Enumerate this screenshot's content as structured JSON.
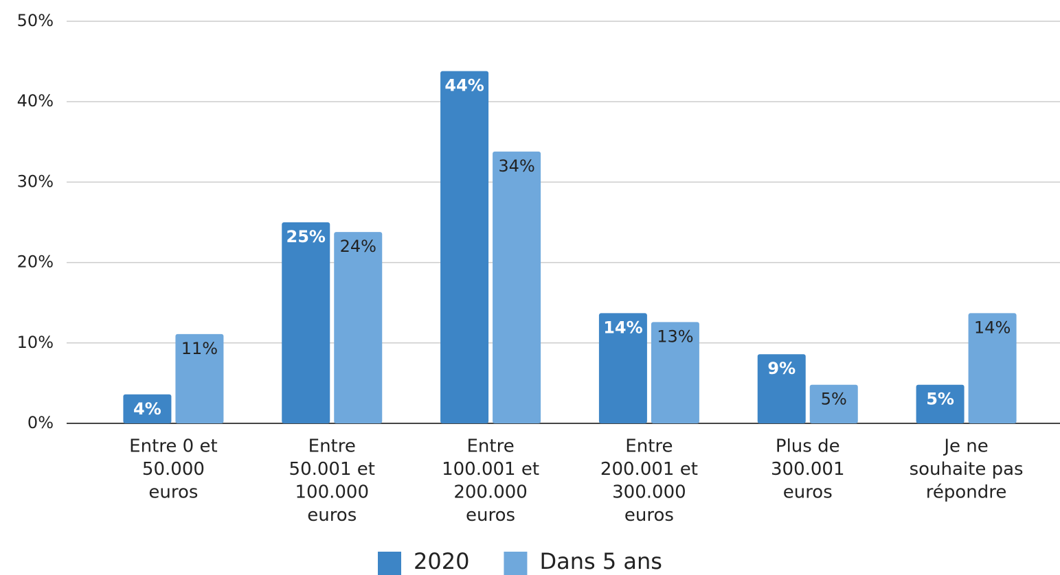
{
  "chart_data": {
    "type": "bar",
    "categories": [
      [
        "Entre 0 et",
        "50.000",
        "euros"
      ],
      [
        "Entre",
        "50.001 et",
        "100.000",
        "euros"
      ],
      [
        "Entre",
        "100.001 et",
        "200.000",
        "euros"
      ],
      [
        "Entre",
        "200.001 et",
        "300.000",
        "euros"
      ],
      [
        "Plus de",
        "300.001",
        "euros"
      ],
      [
        "Je ne",
        "souhaite pas",
        "répondre"
      ]
    ],
    "series": [
      {
        "name": "2020",
        "color": "#3d85c6",
        "label_color": "#ffffff",
        "values": [
          3.6,
          25,
          43.8,
          13.7,
          8.6,
          4.8
        ],
        "value_labels": [
          "4%",
          "25%",
          "44%",
          "14%",
          "9%",
          "5%"
        ]
      },
      {
        "name": "Dans 5 ans",
        "color": "#6fa8dc",
        "label_color": "#222222",
        "values": [
          11.1,
          23.8,
          33.8,
          12.6,
          4.8,
          13.7
        ],
        "value_labels": [
          "11%",
          "24%",
          "34%",
          "13%",
          "5%",
          "14%"
        ]
      }
    ],
    "ylim": [
      0,
      50
    ],
    "yticks": [
      {
        "value": 0,
        "label": "0%"
      },
      {
        "value": 10,
        "label": "10%"
      },
      {
        "value": 20,
        "label": "20%"
      },
      {
        "value": 30,
        "label": "30%"
      },
      {
        "value": 40,
        "label": "40%"
      },
      {
        "value": 50,
        "label": "50%"
      }
    ],
    "grid": true,
    "legend": "bottom"
  }
}
